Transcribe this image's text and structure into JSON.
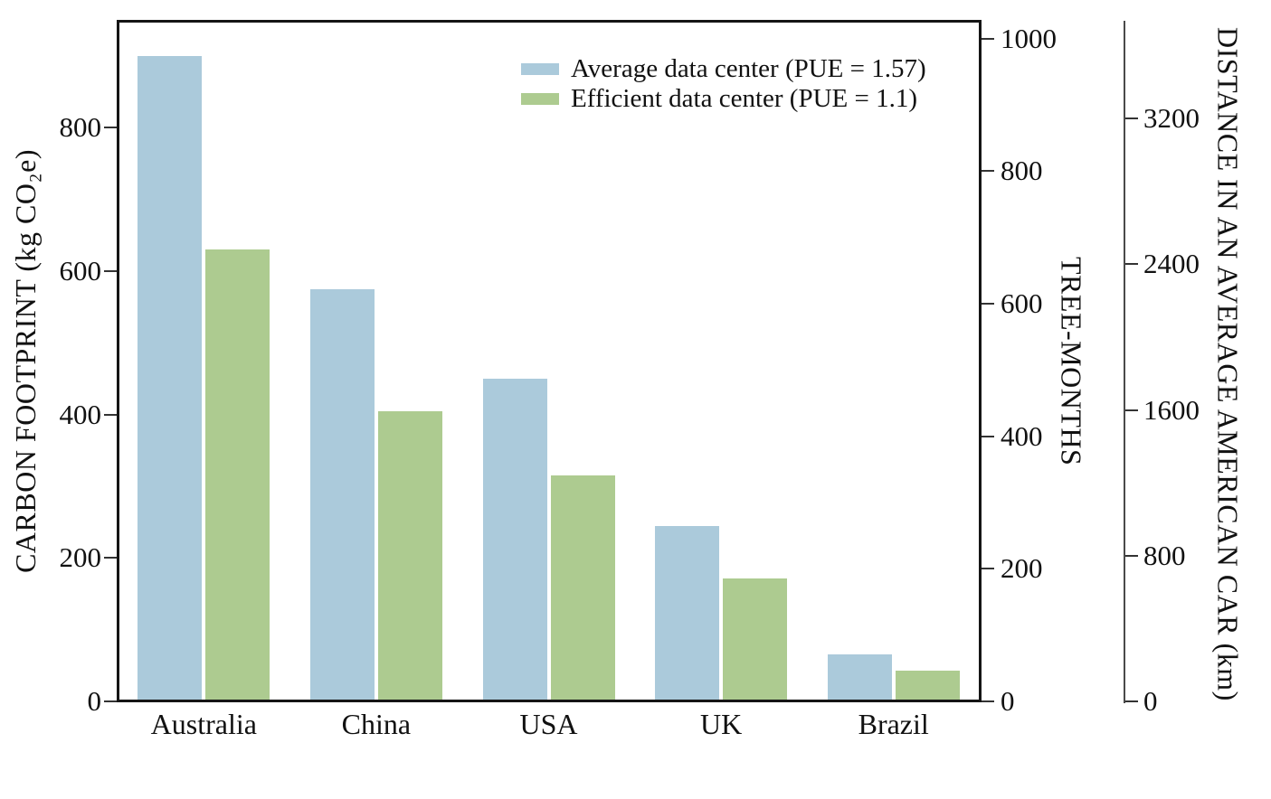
{
  "chart_data": {
    "type": "bar",
    "title": "",
    "categories": [
      "Australia",
      "China",
      "USA",
      "UK",
      "Brazil"
    ],
    "series": [
      {
        "name": "Average data center (PUE = 1.57)",
        "color": "#abcadb",
        "values": [
          900,
          575,
          450,
          245,
          65
        ]
      },
      {
        "name": "Efficient data center (PUE = 1.1)",
        "color": "#adcb90",
        "values": [
          630,
          405,
          315,
          172,
          43
        ]
      }
    ],
    "axes": {
      "left": {
        "label": "CARBON FOOTPRINT (kg CO₂e)",
        "ticks": [
          0,
          200,
          400,
          600,
          800
        ],
        "min": 0,
        "max": 949
      },
      "right_inner": {
        "label": "TREE-MONTHS",
        "ticks": [
          0,
          200,
          400,
          600,
          800,
          1000
        ],
        "min": 0,
        "max": 1027
      },
      "right_outer": {
        "label": "DISTANCE IN AN AVERAGE AMERICAN CAR (km)",
        "ticks": [
          0,
          800,
          1600,
          2400,
          3200
        ],
        "min": 0,
        "max": 3736
      }
    },
    "legend_position": "upper-right-inside",
    "grid": false,
    "background": "#ffffff"
  }
}
